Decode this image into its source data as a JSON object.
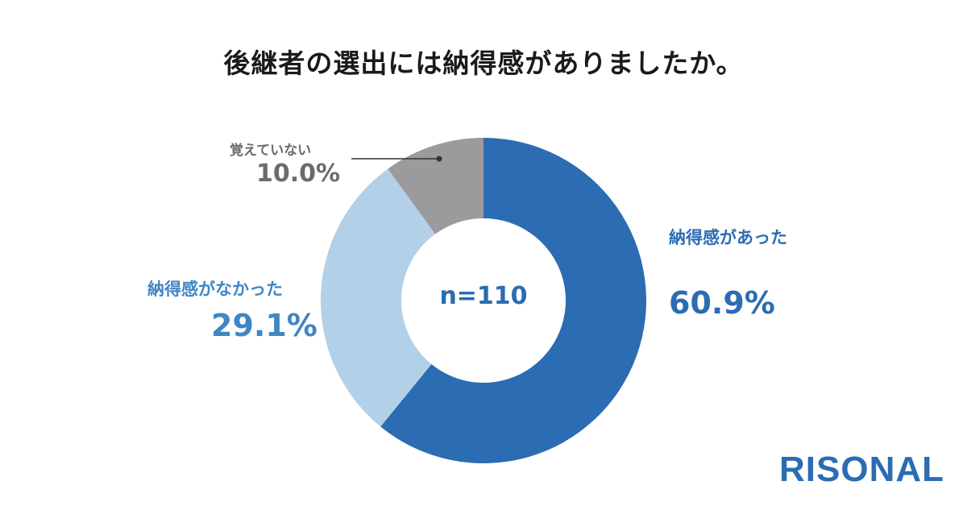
{
  "title": "後継者の選出には納得感がありましたか。",
  "brand": "RISONAL",
  "chart_data": {
    "type": "pie",
    "donut": true,
    "center_label": "n=110",
    "slices": [
      {
        "label": "納得感があった",
        "value": 60.9,
        "value_label": "60.9%",
        "color": "#2b6cb3"
      },
      {
        "label": "納得感がなかった",
        "value": 29.1,
        "value_label": "29.1%",
        "color": "#b2d0e8"
      },
      {
        "label": "覚えていない",
        "value": 10.0,
        "value_label": "10.0%",
        "color": "#9b9b9d"
      }
    ],
    "label_colors": {
      "納得感があった": "#2b6cb3",
      "納得感がなかった": "#3f86c4",
      "覚えていない": "#6b6b6b"
    }
  }
}
